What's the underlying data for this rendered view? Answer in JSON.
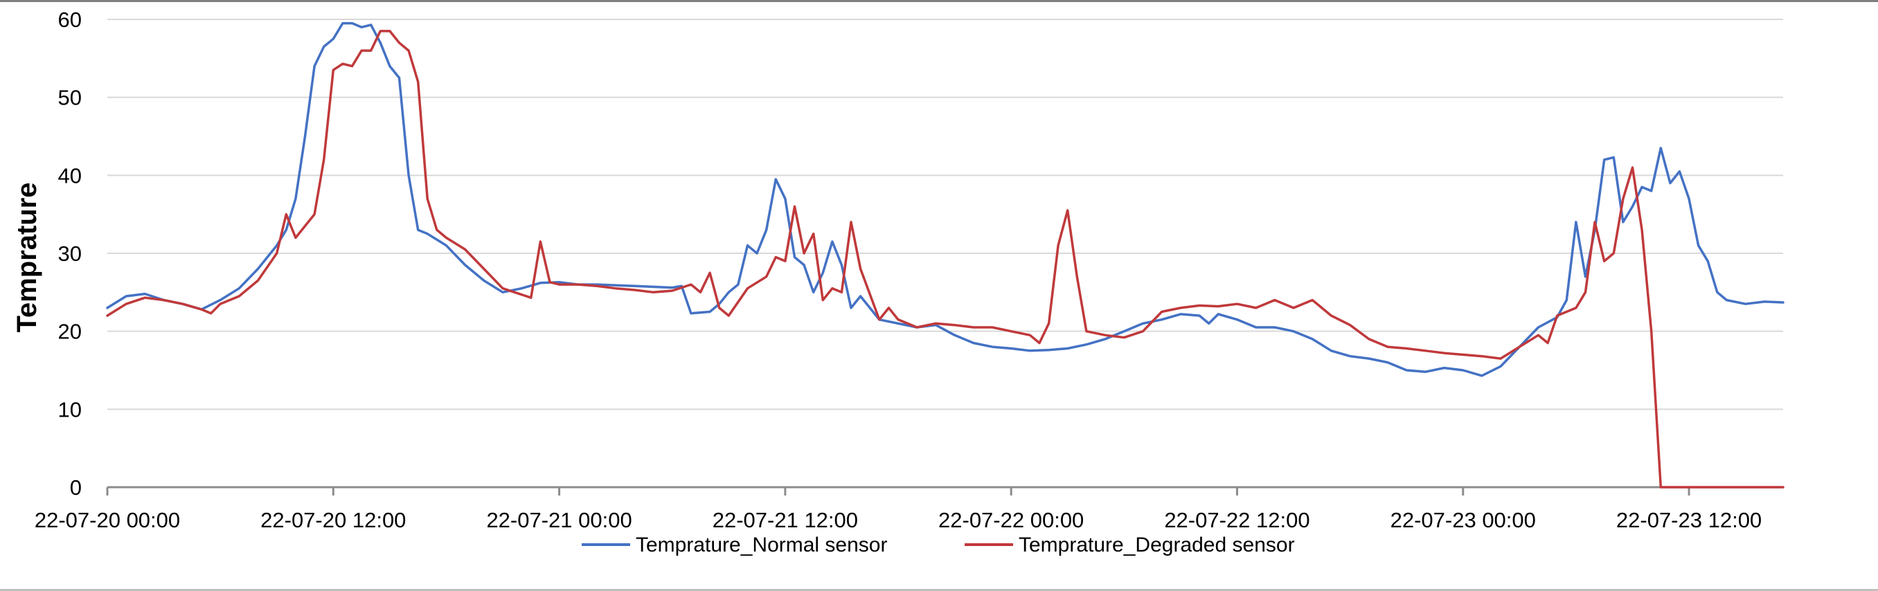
{
  "chart_data": {
    "type": "line",
    "title": "",
    "xlabel": "",
    "ylabel": "Temprature",
    "ylim": [
      0,
      60
    ],
    "y_ticks": [
      0,
      10,
      20,
      30,
      40,
      50,
      60
    ],
    "x_unit": "hours",
    "x_range": [
      0,
      89
    ],
    "x_ticks": [
      {
        "x": 0,
        "label": "22-07-20 00:00"
      },
      {
        "x": 12,
        "label": "22-07-20 12:00"
      },
      {
        "x": 24,
        "label": "22-07-21 00:00"
      },
      {
        "x": 36,
        "label": "22-07-21 12:00"
      },
      {
        "x": 48,
        "label": "22-07-22 00:00"
      },
      {
        "x": 60,
        "label": "22-07-22 12:00"
      },
      {
        "x": 72,
        "label": "22-07-23 00:00"
      },
      {
        "x": 84,
        "label": "22-07-23 12:00"
      }
    ],
    "grid": true,
    "legend_position": "bottom",
    "series": [
      {
        "name": "Temprature_Normal sensor",
        "color": "#4472c4",
        "points": [
          [
            0,
            23.0
          ],
          [
            1,
            24.5
          ],
          [
            2,
            24.8
          ],
          [
            3,
            24.0
          ],
          [
            4,
            23.5
          ],
          [
            5,
            22.8
          ],
          [
            6,
            24.0
          ],
          [
            7,
            25.5
          ],
          [
            8,
            28.0
          ],
          [
            9,
            31.0
          ],
          [
            9.5,
            33.0
          ],
          [
            10,
            37.0
          ],
          [
            10.5,
            45.0
          ],
          [
            11,
            54.0
          ],
          [
            11.5,
            56.5
          ],
          [
            12,
            57.5
          ],
          [
            12.5,
            59.5
          ],
          [
            13,
            59.5
          ],
          [
            13.5,
            59.0
          ],
          [
            14,
            59.3
          ],
          [
            14.5,
            57.0
          ],
          [
            15,
            54.0
          ],
          [
            15.5,
            52.5
          ],
          [
            16,
            40.0
          ],
          [
            16.5,
            33.0
          ],
          [
            17,
            32.5
          ],
          [
            18,
            31.0
          ],
          [
            19,
            28.5
          ],
          [
            20,
            26.5
          ],
          [
            21,
            25.0
          ],
          [
            22,
            25.5
          ],
          [
            23,
            26.2
          ],
          [
            24,
            26.3
          ],
          [
            25,
            26.0
          ],
          [
            26,
            26.0
          ],
          [
            28,
            25.8
          ],
          [
            30,
            25.6
          ],
          [
            30.5,
            25.8
          ],
          [
            31,
            22.3
          ],
          [
            32,
            22.5
          ],
          [
            32.5,
            23.5
          ],
          [
            33,
            25.0
          ],
          [
            33.5,
            26.0
          ],
          [
            34,
            31.0
          ],
          [
            34.5,
            30.0
          ],
          [
            35,
            33.0
          ],
          [
            35.5,
            39.5
          ],
          [
            36,
            37.0
          ],
          [
            36.5,
            29.5
          ],
          [
            37,
            28.5
          ],
          [
            37.5,
            25.0
          ],
          [
            38,
            27.5
          ],
          [
            38.5,
            31.5
          ],
          [
            39,
            28.5
          ],
          [
            39.5,
            23.0
          ],
          [
            40,
            24.5
          ],
          [
            41,
            21.5
          ],
          [
            42,
            21.0
          ],
          [
            43,
            20.5
          ],
          [
            44,
            20.8
          ],
          [
            45,
            19.5
          ],
          [
            46,
            18.5
          ],
          [
            47,
            18.0
          ],
          [
            48,
            17.8
          ],
          [
            49,
            17.5
          ],
          [
            50,
            17.6
          ],
          [
            51,
            17.8
          ],
          [
            52,
            18.3
          ],
          [
            53,
            19.0
          ],
          [
            54,
            20.0
          ],
          [
            55,
            21.0
          ],
          [
            56,
            21.5
          ],
          [
            57,
            22.2
          ],
          [
            58,
            22.0
          ],
          [
            58.5,
            21.0
          ],
          [
            59,
            22.2
          ],
          [
            60,
            21.5
          ],
          [
            61,
            20.5
          ],
          [
            62,
            20.5
          ],
          [
            63,
            20.0
          ],
          [
            64,
            19.0
          ],
          [
            65,
            17.5
          ],
          [
            66,
            16.8
          ],
          [
            67,
            16.5
          ],
          [
            68,
            16.0
          ],
          [
            69,
            15.0
          ],
          [
            70,
            14.8
          ],
          [
            71,
            15.3
          ],
          [
            72,
            15.0
          ],
          [
            73,
            14.3
          ],
          [
            74,
            15.5
          ],
          [
            75,
            18.0
          ],
          [
            76,
            20.5
          ],
          [
            77,
            21.8
          ],
          [
            77.5,
            24.0
          ],
          [
            78,
            34.0
          ],
          [
            78.5,
            27.0
          ],
          [
            79,
            33.0
          ],
          [
            79.5,
            42.0
          ],
          [
            80,
            42.3
          ],
          [
            80.5,
            34.0
          ],
          [
            81,
            36.0
          ],
          [
            81.5,
            38.5
          ],
          [
            82,
            38.0
          ],
          [
            82.5,
            43.5
          ],
          [
            83,
            39.0
          ],
          [
            83.5,
            40.5
          ],
          [
            84,
            37.0
          ],
          [
            84.5,
            31.0
          ],
          [
            85,
            29.0
          ],
          [
            85.5,
            25.0
          ],
          [
            86,
            24.0
          ],
          [
            87,
            23.5
          ],
          [
            88,
            23.8
          ],
          [
            89,
            23.7
          ]
        ]
      },
      {
        "name": "Temprature_Degraded sensor",
        "color": "#c0393b",
        "points": [
          [
            0,
            22.0
          ],
          [
            1,
            23.5
          ],
          [
            2,
            24.3
          ],
          [
            3,
            24.0
          ],
          [
            4,
            23.5
          ],
          [
            5,
            22.8
          ],
          [
            5.5,
            22.3
          ],
          [
            6,
            23.5
          ],
          [
            7,
            24.5
          ],
          [
            8,
            26.5
          ],
          [
            9,
            30.0
          ],
          [
            9.5,
            35.0
          ],
          [
            10,
            32.0
          ],
          [
            11,
            35.0
          ],
          [
            11.5,
            42.0
          ],
          [
            12,
            53.5
          ],
          [
            12.5,
            54.3
          ],
          [
            13,
            54.0
          ],
          [
            13.5,
            56.0
          ],
          [
            14,
            56.0
          ],
          [
            14.5,
            58.5
          ],
          [
            15,
            58.5
          ],
          [
            15.5,
            57.0
          ],
          [
            16,
            56.0
          ],
          [
            16.5,
            52.0
          ],
          [
            17,
            37.0
          ],
          [
            17.5,
            33.0
          ],
          [
            18,
            32.0
          ],
          [
            19,
            30.5
          ],
          [
            20,
            28.0
          ],
          [
            21,
            25.5
          ],
          [
            22,
            24.7
          ],
          [
            22.5,
            24.3
          ],
          [
            23,
            31.5
          ],
          [
            23.5,
            26.3
          ],
          [
            24,
            26.0
          ],
          [
            25,
            26.0
          ],
          [
            26,
            25.8
          ],
          [
            27,
            25.5
          ],
          [
            28,
            25.3
          ],
          [
            29,
            25.0
          ],
          [
            30,
            25.2
          ],
          [
            31,
            26.0
          ],
          [
            31.5,
            25.0
          ],
          [
            32,
            27.5
          ],
          [
            32.5,
            23.0
          ],
          [
            33,
            22.0
          ],
          [
            34,
            25.5
          ],
          [
            35,
            27.0
          ],
          [
            35.5,
            29.5
          ],
          [
            36,
            29.0
          ],
          [
            36.5,
            36.0
          ],
          [
            37,
            30.0
          ],
          [
            37.5,
            32.5
          ],
          [
            38,
            24.0
          ],
          [
            38.5,
            25.5
          ],
          [
            39,
            25.0
          ],
          [
            39.5,
            34.0
          ],
          [
            40,
            28.0
          ],
          [
            41,
            21.5
          ],
          [
            41.5,
            23.0
          ],
          [
            42,
            21.5
          ],
          [
            43,
            20.5
          ],
          [
            44,
            21.0
          ],
          [
            45,
            20.8
          ],
          [
            46,
            20.5
          ],
          [
            47,
            20.5
          ],
          [
            48,
            20.0
          ],
          [
            49,
            19.5
          ],
          [
            49.5,
            18.5
          ],
          [
            50,
            21.0
          ],
          [
            50.5,
            31.0
          ],
          [
            51,
            35.5
          ],
          [
            51.5,
            27.0
          ],
          [
            52,
            20.0
          ],
          [
            53,
            19.5
          ],
          [
            54,
            19.2
          ],
          [
            55,
            20.0
          ],
          [
            56,
            22.5
          ],
          [
            57,
            23.0
          ],
          [
            58,
            23.3
          ],
          [
            59,
            23.2
          ],
          [
            60,
            23.5
          ],
          [
            61,
            23.0
          ],
          [
            62,
            24.0
          ],
          [
            63,
            23.0
          ],
          [
            64,
            24.0
          ],
          [
            65,
            22.0
          ],
          [
            66,
            20.8
          ],
          [
            67,
            19.0
          ],
          [
            68,
            18.0
          ],
          [
            69,
            17.8
          ],
          [
            70,
            17.5
          ],
          [
            71,
            17.2
          ],
          [
            72,
            17.0
          ],
          [
            73,
            16.8
          ],
          [
            74,
            16.5
          ],
          [
            75,
            18.0
          ],
          [
            76,
            19.5
          ],
          [
            76.5,
            18.5
          ],
          [
            77,
            22.0
          ],
          [
            78,
            23.0
          ],
          [
            78.5,
            25.0
          ],
          [
            79,
            34.0
          ],
          [
            79.5,
            29.0
          ],
          [
            80,
            30.0
          ],
          [
            80.5,
            37.0
          ],
          [
            81,
            41.0
          ],
          [
            81.5,
            33.0
          ],
          [
            82,
            20.0
          ],
          [
            82.5,
            0.0
          ],
          [
            83,
            0.0
          ],
          [
            86,
            0.0
          ],
          [
            89,
            0.0
          ]
        ]
      }
    ]
  }
}
